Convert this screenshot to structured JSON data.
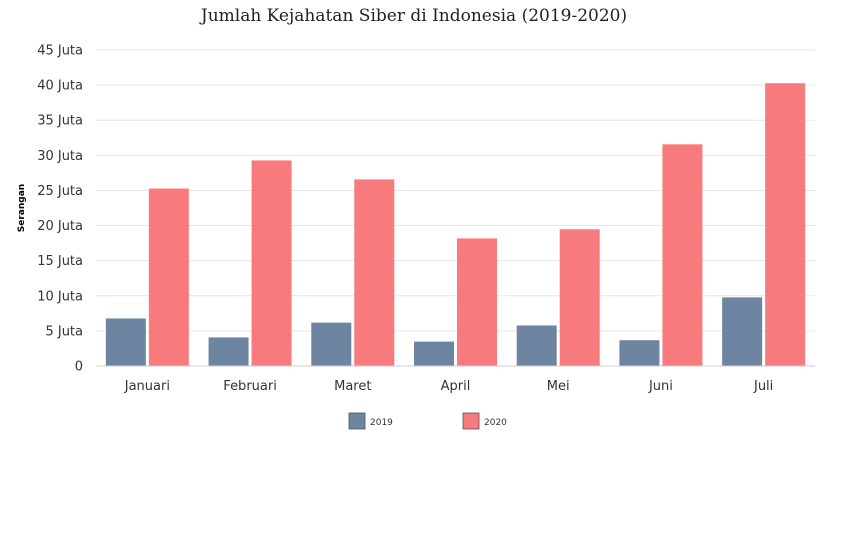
{
  "chart_data": {
    "type": "bar",
    "title": "Jumlah Kejahatan Siber di Indonesia (2019-2020)",
    "ylabel": "Serangan",
    "xlabel": "",
    "categories": [
      "Januari",
      "Februari",
      "Maret",
      "April",
      "Mei",
      "Juni",
      "Juli"
    ],
    "series": [
      {
        "name": "2019",
        "color": "#6e85a1",
        "values": [
          6.7,
          4.0,
          6.1,
          3.4,
          5.7,
          3.6,
          9.7
        ]
      },
      {
        "name": "2020",
        "color": "#f77b7d",
        "values": [
          25.2,
          29.2,
          26.5,
          18.1,
          19.4,
          31.5,
          40.2
        ]
      }
    ],
    "ylim": [
      0,
      45
    ],
    "yticks": [
      0,
      5,
      10,
      15,
      20,
      25,
      30,
      35,
      40,
      45
    ],
    "ytick_labels": [
      "0",
      "5 Juta",
      "10 Juta",
      "15 Juta",
      "20 Juta",
      "25 Juta",
      "30 Juta",
      "35 Juta",
      "40 Juta",
      "45 Juta"
    ],
    "grid": true,
    "legend_position": "bottom"
  }
}
